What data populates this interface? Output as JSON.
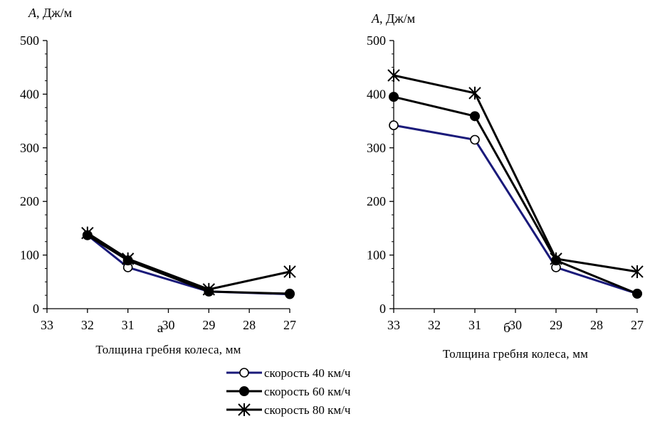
{
  "chart_data": [
    {
      "type": "line",
      "panel_label": "а",
      "ylabel_var": "A",
      "ylabel_unit": ", Дж/м",
      "xlabel": "Толщина гребня колеса, мм",
      "x_ticks": [
        33,
        32,
        31,
        30,
        29,
        28,
        27
      ],
      "xlim": [
        33,
        27
      ],
      "ylim": [
        0,
        500
      ],
      "y_ticks": [
        0,
        100,
        200,
        300,
        400,
        500
      ],
      "grid": false,
      "series": [
        {
          "name": "скорость 40 км/ч",
          "marker": "open-circle",
          "color": "#1a1a7a",
          "x": [
            32,
            31,
            29,
            27
          ],
          "values": [
            137,
            77,
            32,
            27
          ]
        },
        {
          "name": "скорость 60 км/ч",
          "marker": "filled-circle",
          "color": "#000000",
          "x": [
            32,
            31,
            29,
            27
          ],
          "values": [
            137,
            90,
            32,
            28
          ]
        },
        {
          "name": "скорость 80 км/ч",
          "marker": "star",
          "color": "#000000",
          "x": [
            32,
            31,
            29,
            27
          ],
          "values": [
            141,
            93,
            36,
            69
          ]
        }
      ]
    },
    {
      "type": "line",
      "panel_label": "б",
      "ylabel_var": "A",
      "ylabel_unit": ", Дж/м",
      "xlabel": "Толщина гребня колеса, мм",
      "x_ticks": [
        33,
        32,
        31,
        30,
        29,
        28,
        27
      ],
      "xlim": [
        33,
        27
      ],
      "ylim": [
        0,
        500
      ],
      "y_ticks": [
        0,
        100,
        200,
        300,
        400,
        500
      ],
      "grid": false,
      "series": [
        {
          "name": "скорость 40 км/ч",
          "marker": "open-circle",
          "color": "#1a1a7a",
          "x": [
            33,
            31,
            29,
            27
          ],
          "values": [
            342,
            315,
            77,
            28
          ]
        },
        {
          "name": "скорость 60 км/ч",
          "marker": "filled-circle",
          "color": "#000000",
          "x": [
            33,
            31,
            29,
            27
          ],
          "values": [
            395,
            359,
            90,
            28
          ]
        },
        {
          "name": "скорость 80 км/ч",
          "marker": "star",
          "color": "#000000",
          "x": [
            33,
            31,
            29,
            27
          ],
          "values": [
            435,
            402,
            93,
            69
          ]
        }
      ]
    }
  ],
  "legend": {
    "position": "bottom-center",
    "items": [
      {
        "label": "скорость 40 км/ч",
        "marker": "open-circle",
        "color": "#1a1a7a"
      },
      {
        "label": "скорость 60 км/ч",
        "marker": "filled-circle",
        "color": "#000000"
      },
      {
        "label": "скорость 80 км/ч",
        "marker": "star",
        "color": "#000000"
      }
    ]
  }
}
